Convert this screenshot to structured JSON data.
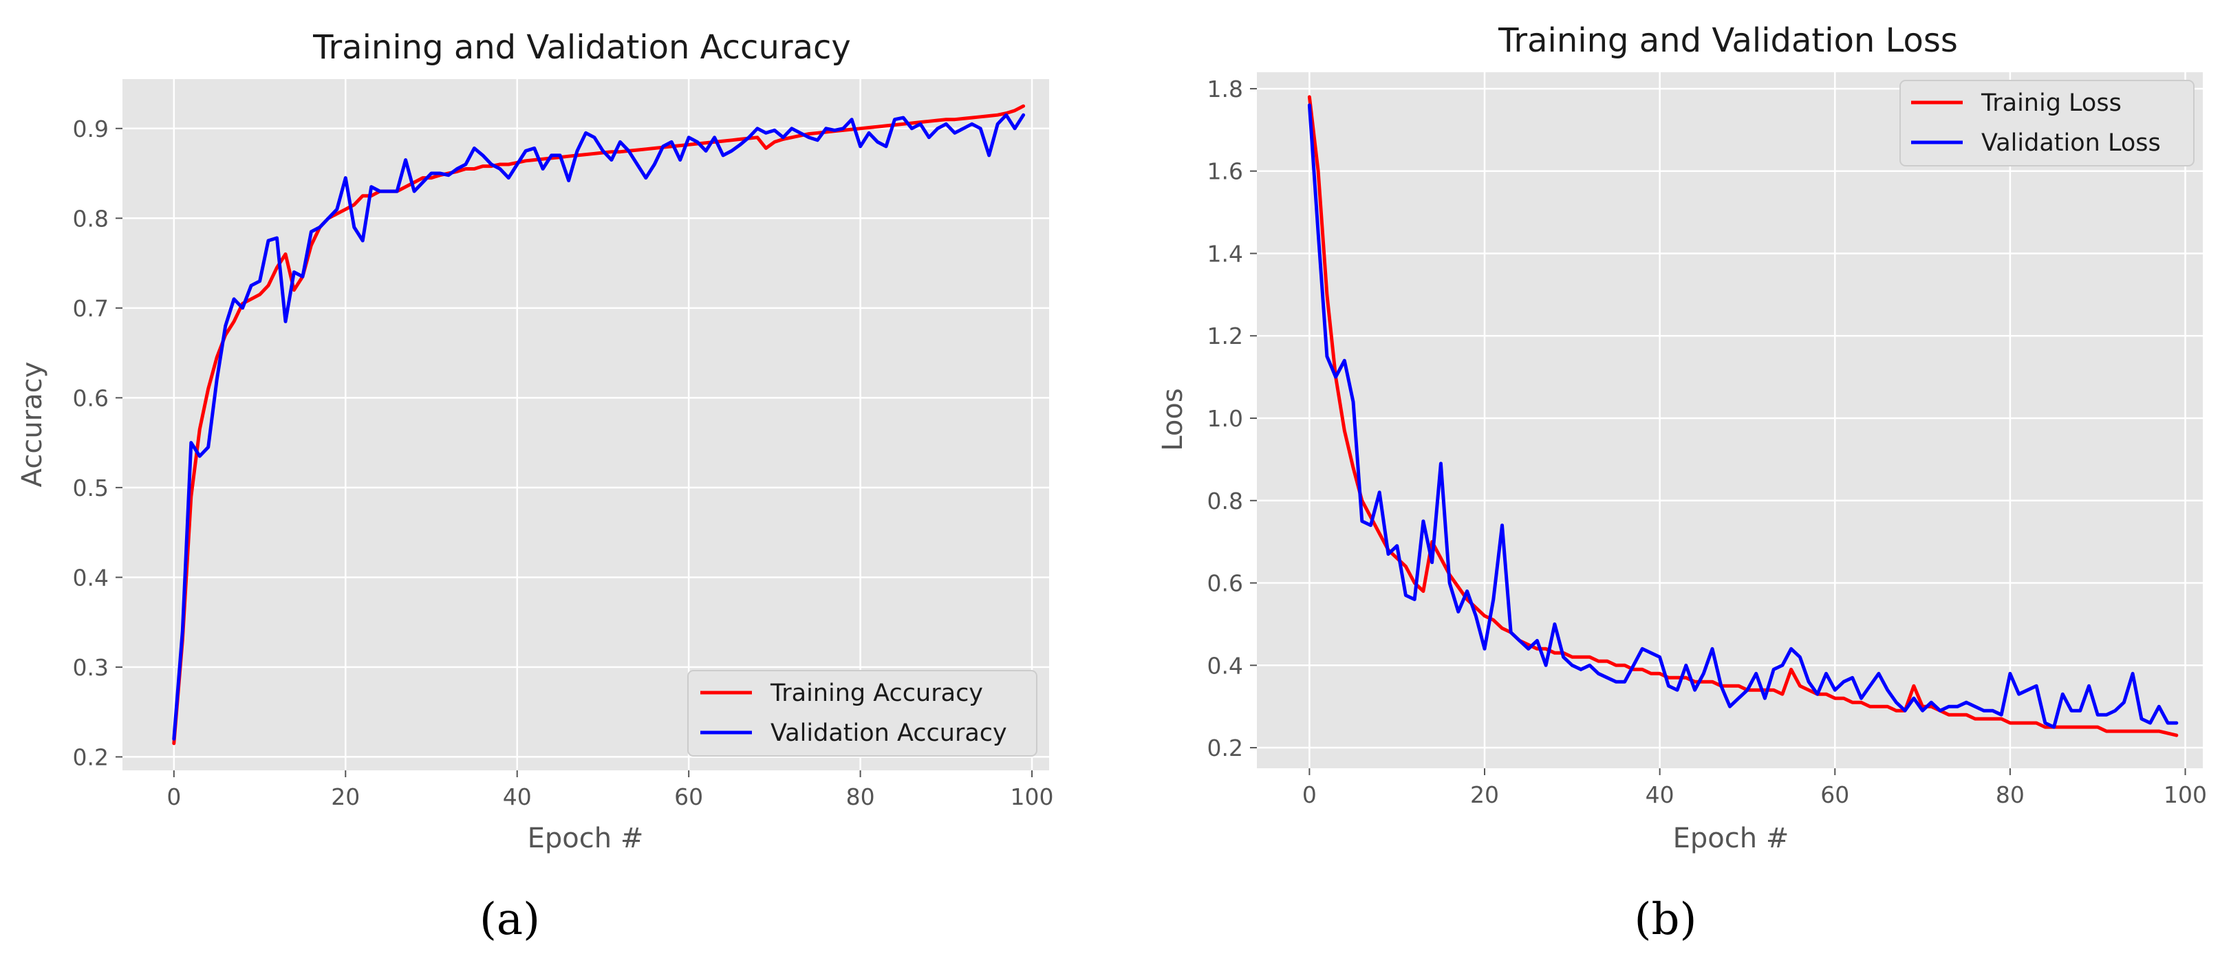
{
  "chart_data": [
    {
      "type": "line",
      "title": "Training and Validation Accuracy",
      "xlabel": "Epoch #",
      "ylabel": "Accuracy",
      "xlim": [
        -6,
        102
      ],
      "ylim": [
        0.185,
        0.955
      ],
      "xticks": [
        0,
        20,
        40,
        60,
        80,
        100
      ],
      "yticks": [
        0.2,
        0.3,
        0.4,
        0.5,
        0.6,
        0.7,
        0.8,
        0.9
      ],
      "xtick_labels": [
        "0",
        "20",
        "40",
        "60",
        "80",
        "100"
      ],
      "ytick_labels": [
        "0.2",
        "0.3",
        "0.4",
        "0.5",
        "0.6",
        "0.7",
        "0.8",
        "0.9"
      ],
      "grid": true,
      "legend_position": "lower-right",
      "caption": "(a)",
      "series": [
        {
          "name": "Training Accuracy",
          "color": "#ff0000",
          "values": [
            0.215,
            0.33,
            0.49,
            0.565,
            0.61,
            0.645,
            0.67,
            0.685,
            0.705,
            0.71,
            0.715,
            0.725,
            0.745,
            0.76,
            0.72,
            0.735,
            0.77,
            0.79,
            0.8,
            0.805,
            0.81,
            0.815,
            0.825,
            0.825,
            0.83,
            0.83,
            0.83,
            0.835,
            0.84,
            0.845,
            0.845,
            0.848,
            0.85,
            0.852,
            0.855,
            0.855,
            0.858,
            0.858,
            0.86,
            0.86,
            0.862,
            0.864,
            0.865,
            0.866,
            0.867,
            0.868,
            0.869,
            0.87,
            0.871,
            0.872,
            0.873,
            0.874,
            0.874,
            0.875,
            0.876,
            0.877,
            0.878,
            0.879,
            0.88,
            0.881,
            0.882,
            0.883,
            0.884,
            0.885,
            0.886,
            0.887,
            0.888,
            0.889,
            0.89,
            0.878,
            0.885,
            0.888,
            0.89,
            0.892,
            0.894,
            0.895,
            0.896,
            0.897,
            0.898,
            0.899,
            0.9,
            0.901,
            0.902,
            0.903,
            0.904,
            0.905,
            0.906,
            0.907,
            0.908,
            0.909,
            0.91,
            0.91,
            0.911,
            0.912,
            0.913,
            0.914,
            0.915,
            0.917,
            0.92,
            0.925
          ]
        },
        {
          "name": "Validation Accuracy",
          "color": "#0000ff",
          "values": [
            0.22,
            0.34,
            0.55,
            0.535,
            0.545,
            0.62,
            0.68,
            0.71,
            0.7,
            0.725,
            0.73,
            0.775,
            0.778,
            0.685,
            0.74,
            0.735,
            0.785,
            0.79,
            0.8,
            0.81,
            0.845,
            0.79,
            0.775,
            0.835,
            0.83,
            0.83,
            0.83,
            0.865,
            0.83,
            0.84,
            0.85,
            0.85,
            0.848,
            0.855,
            0.86,
            0.878,
            0.87,
            0.86,
            0.855,
            0.845,
            0.86,
            0.875,
            0.878,
            0.855,
            0.87,
            0.87,
            0.842,
            0.875,
            0.895,
            0.89,
            0.875,
            0.865,
            0.885,
            0.875,
            0.86,
            0.845,
            0.86,
            0.88,
            0.885,
            0.865,
            0.89,
            0.885,
            0.875,
            0.89,
            0.87,
            0.875,
            0.882,
            0.89,
            0.9,
            0.895,
            0.898,
            0.89,
            0.9,
            0.895,
            0.89,
            0.887,
            0.9,
            0.898,
            0.9,
            0.91,
            0.88,
            0.895,
            0.885,
            0.88,
            0.91,
            0.912,
            0.9,
            0.905,
            0.89,
            0.9,
            0.905,
            0.895,
            0.9,
            0.905,
            0.9,
            0.87,
            0.905,
            0.915,
            0.9,
            0.915
          ]
        }
      ]
    },
    {
      "type": "line",
      "title": "Training and Validation Loss",
      "xlabel": "Epoch #",
      "ylabel": "Loos",
      "xlim": [
        -6,
        102
      ],
      "ylim": [
        0.15,
        1.84
      ],
      "xticks": [
        0,
        20,
        40,
        60,
        80,
        100
      ],
      "yticks": [
        0.2,
        0.4,
        0.6,
        0.8,
        1.0,
        1.2,
        1.4,
        1.6,
        1.8
      ],
      "xtick_labels": [
        "0",
        "20",
        "40",
        "60",
        "80",
        "100"
      ],
      "ytick_labels": [
        "0.2",
        "0.4",
        "0.6",
        "0.8",
        "1.0",
        "1.2",
        "1.4",
        "1.6",
        "1.8"
      ],
      "grid": true,
      "legend_position": "upper-right",
      "caption": "(b)",
      "series": [
        {
          "name": "Trainig Loss",
          "color": "#ff0000",
          "values": [
            1.78,
            1.6,
            1.3,
            1.1,
            0.97,
            0.88,
            0.8,
            0.76,
            0.72,
            0.68,
            0.66,
            0.64,
            0.6,
            0.58,
            0.7,
            0.66,
            0.62,
            0.59,
            0.56,
            0.54,
            0.52,
            0.51,
            0.49,
            0.48,
            0.46,
            0.45,
            0.44,
            0.44,
            0.43,
            0.43,
            0.42,
            0.42,
            0.42,
            0.41,
            0.41,
            0.4,
            0.4,
            0.39,
            0.39,
            0.38,
            0.38,
            0.37,
            0.37,
            0.37,
            0.36,
            0.36,
            0.36,
            0.35,
            0.35,
            0.35,
            0.34,
            0.34,
            0.34,
            0.34,
            0.33,
            0.39,
            0.35,
            0.34,
            0.33,
            0.33,
            0.32,
            0.32,
            0.31,
            0.31,
            0.3,
            0.3,
            0.3,
            0.29,
            0.29,
            0.35,
            0.3,
            0.3,
            0.29,
            0.28,
            0.28,
            0.28,
            0.27,
            0.27,
            0.27,
            0.27,
            0.26,
            0.26,
            0.26,
            0.26,
            0.25,
            0.25,
            0.25,
            0.25,
            0.25,
            0.25,
            0.25,
            0.24,
            0.24,
            0.24,
            0.24,
            0.24,
            0.24,
            0.24,
            0.235,
            0.23
          ]
        },
        {
          "name": "Validation Loss",
          "color": "#0000ff",
          "values": [
            1.76,
            1.45,
            1.15,
            1.1,
            1.14,
            1.04,
            0.75,
            0.74,
            0.82,
            0.67,
            0.69,
            0.57,
            0.56,
            0.75,
            0.65,
            0.89,
            0.6,
            0.53,
            0.58,
            0.52,
            0.44,
            0.56,
            0.74,
            0.48,
            0.46,
            0.44,
            0.46,
            0.4,
            0.5,
            0.42,
            0.4,
            0.39,
            0.4,
            0.38,
            0.37,
            0.36,
            0.36,
            0.4,
            0.44,
            0.43,
            0.42,
            0.35,
            0.34,
            0.4,
            0.34,
            0.38,
            0.44,
            0.35,
            0.3,
            0.32,
            0.34,
            0.38,
            0.32,
            0.39,
            0.4,
            0.44,
            0.42,
            0.36,
            0.33,
            0.38,
            0.34,
            0.36,
            0.37,
            0.32,
            0.35,
            0.38,
            0.34,
            0.31,
            0.29,
            0.32,
            0.29,
            0.31,
            0.29,
            0.3,
            0.3,
            0.31,
            0.3,
            0.29,
            0.29,
            0.28,
            0.38,
            0.33,
            0.34,
            0.35,
            0.26,
            0.25,
            0.33,
            0.29,
            0.29,
            0.35,
            0.28,
            0.28,
            0.29,
            0.31,
            0.38,
            0.27,
            0.26,
            0.3,
            0.26,
            0.26
          ]
        }
      ]
    }
  ]
}
